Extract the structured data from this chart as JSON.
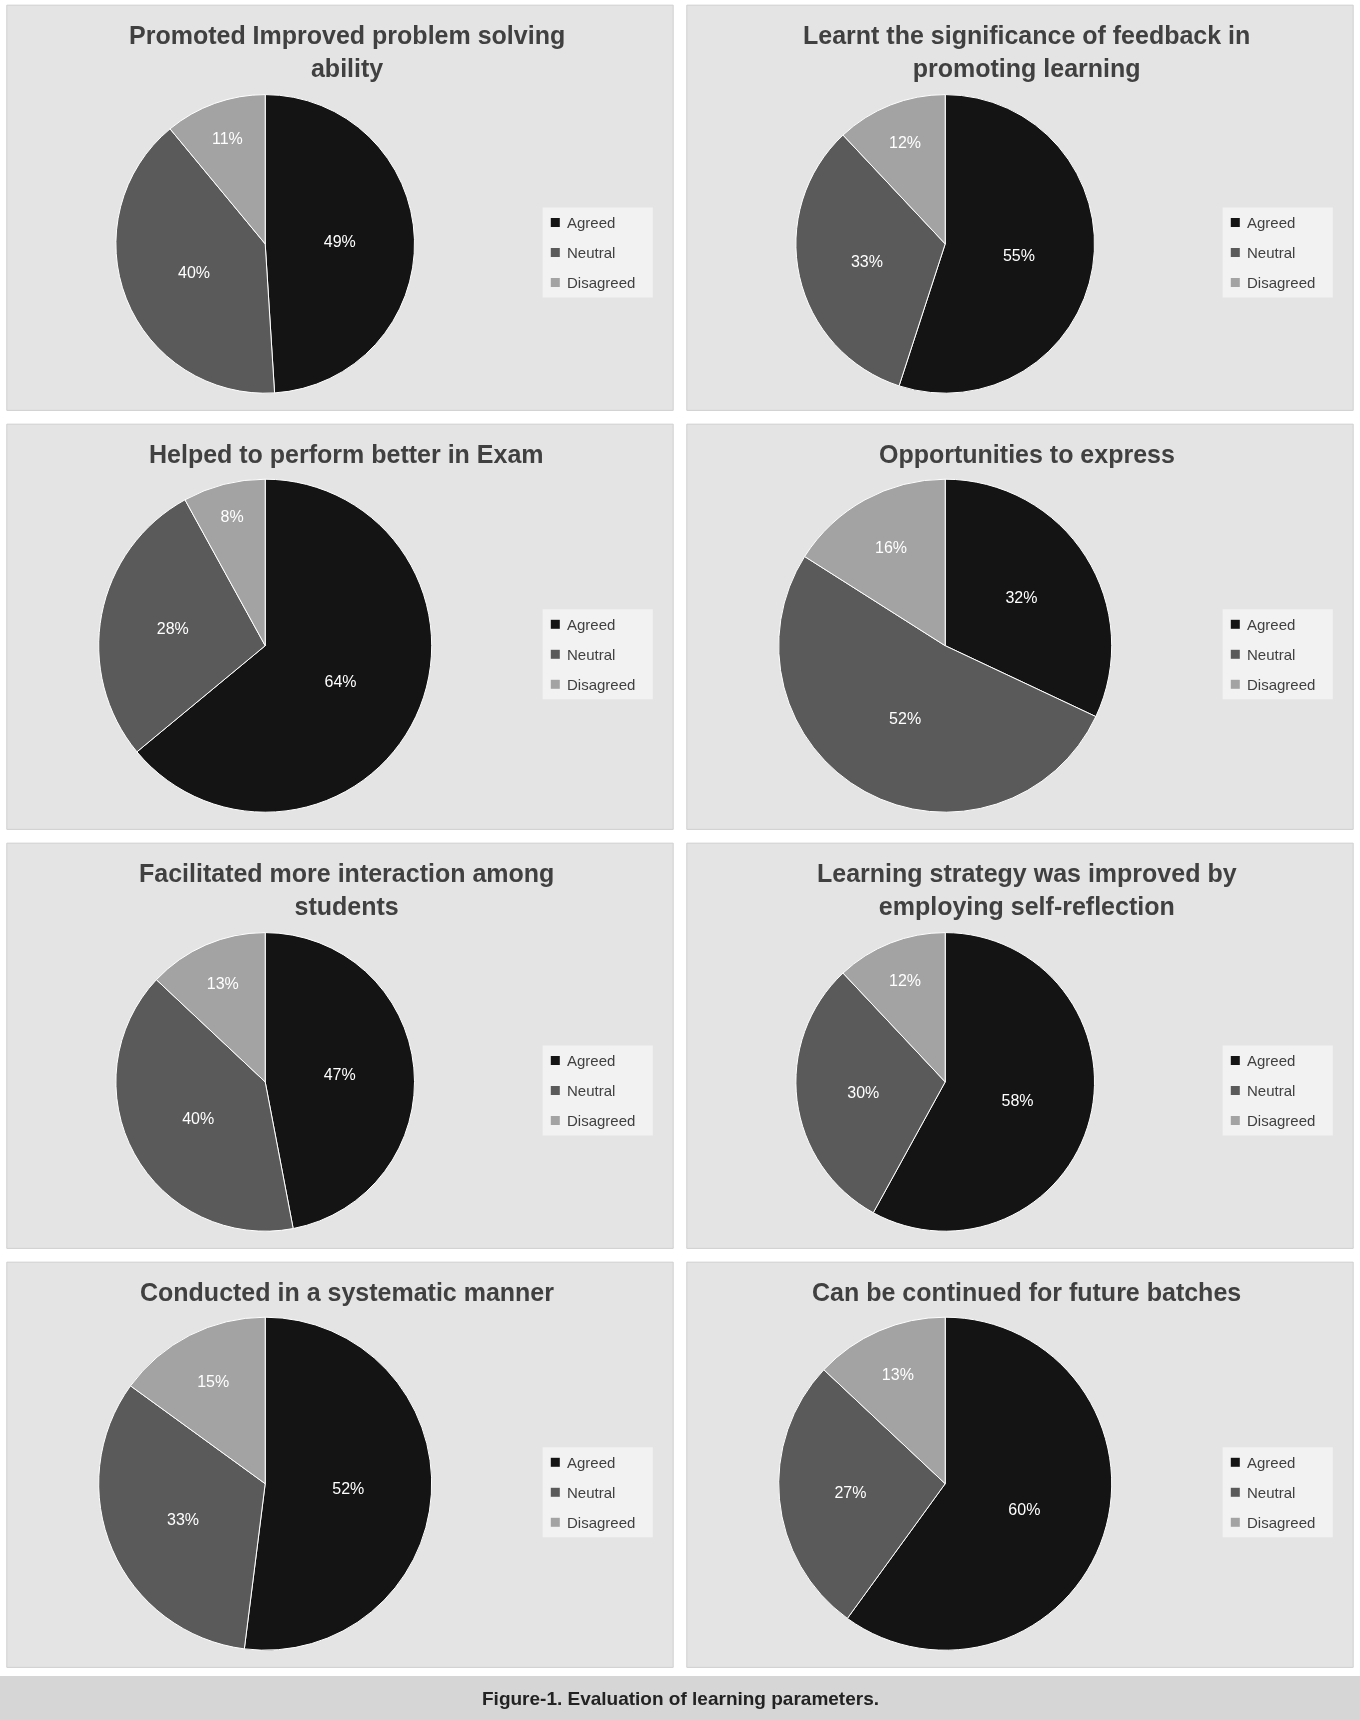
{
  "chart_data": [
    {
      "type": "pie",
      "title": "Promoted Improved problem solving ability",
      "categories": [
        "Agreed",
        "Neutral",
        "Disagreed"
      ],
      "values": [
        49,
        40,
        11
      ],
      "colors": [
        "#141414",
        "#5a5a5a",
        "#a3a3a3"
      ],
      "value_labels": [
        "49%",
        "40%",
        "11%"
      ],
      "legend": "right"
    },
    {
      "type": "pie",
      "title": "Learnt the significance of feedback in promoting learning",
      "categories": [
        "Agreed",
        "Neutral",
        "Disagreed"
      ],
      "values": [
        55,
        33,
        12
      ],
      "colors": [
        "#141414",
        "#5a5a5a",
        "#a3a3a3"
      ],
      "value_labels": [
        "55%",
        "33%",
        "12%"
      ],
      "legend": "right"
    },
    {
      "type": "pie",
      "title": "Helped to perform better in Exam",
      "categories": [
        "Agreed",
        "Neutral",
        "Disagreed"
      ],
      "values": [
        64,
        28,
        8
      ],
      "colors": [
        "#141414",
        "#5a5a5a",
        "#a3a3a3"
      ],
      "value_labels": [
        "64%",
        "28%",
        "8%"
      ],
      "legend": "right"
    },
    {
      "type": "pie",
      "title": "Opportunities to express",
      "categories": [
        "Agreed",
        "Neutral",
        "Disagreed"
      ],
      "values": [
        32,
        52,
        16
      ],
      "colors": [
        "#141414",
        "#5a5a5a",
        "#a3a3a3"
      ],
      "value_labels": [
        "32%",
        "52%",
        "16%"
      ],
      "legend": "right"
    },
    {
      "type": "pie",
      "title": "Facilitated more interaction among students",
      "categories": [
        "Agreed",
        "Neutral",
        "Disagreed"
      ],
      "values": [
        47,
        40,
        13
      ],
      "colors": [
        "#141414",
        "#5a5a5a",
        "#a3a3a3"
      ],
      "value_labels": [
        "47%",
        "40%",
        "13%"
      ],
      "legend": "right"
    },
    {
      "type": "pie",
      "title": "Learning strategy was improved by employing self-reflection",
      "categories": [
        "Agreed",
        "Neutral",
        "Disagreed"
      ],
      "values": [
        58,
        30,
        12
      ],
      "colors": [
        "#141414",
        "#5a5a5a",
        "#a3a3a3"
      ],
      "value_labels": [
        "58%",
        "30%",
        "12%"
      ],
      "legend": "right"
    },
    {
      "type": "pie",
      "title": "Conducted in a systematic manner",
      "categories": [
        "Agreed",
        "Neutral",
        "Disagreed"
      ],
      "values": [
        52,
        33,
        15
      ],
      "colors": [
        "#141414",
        "#5a5a5a",
        "#a3a3a3"
      ],
      "value_labels": [
        "52%",
        "33%",
        "15%"
      ],
      "legend": "right"
    },
    {
      "type": "pie",
      "title": "Can be continued for future batches",
      "categories": [
        "Agreed",
        "Neutral",
        "Disagreed"
      ],
      "values": [
        60,
        27,
        13
      ],
      "colors": [
        "#141414",
        "#5a5a5a",
        "#a3a3a3"
      ],
      "value_labels": [
        "60%",
        "27%",
        "13%"
      ],
      "legend": "right",
      "annotations": [
        "Figure-1. Evaluation of learning parameters."
      ]
    }
  ]
}
